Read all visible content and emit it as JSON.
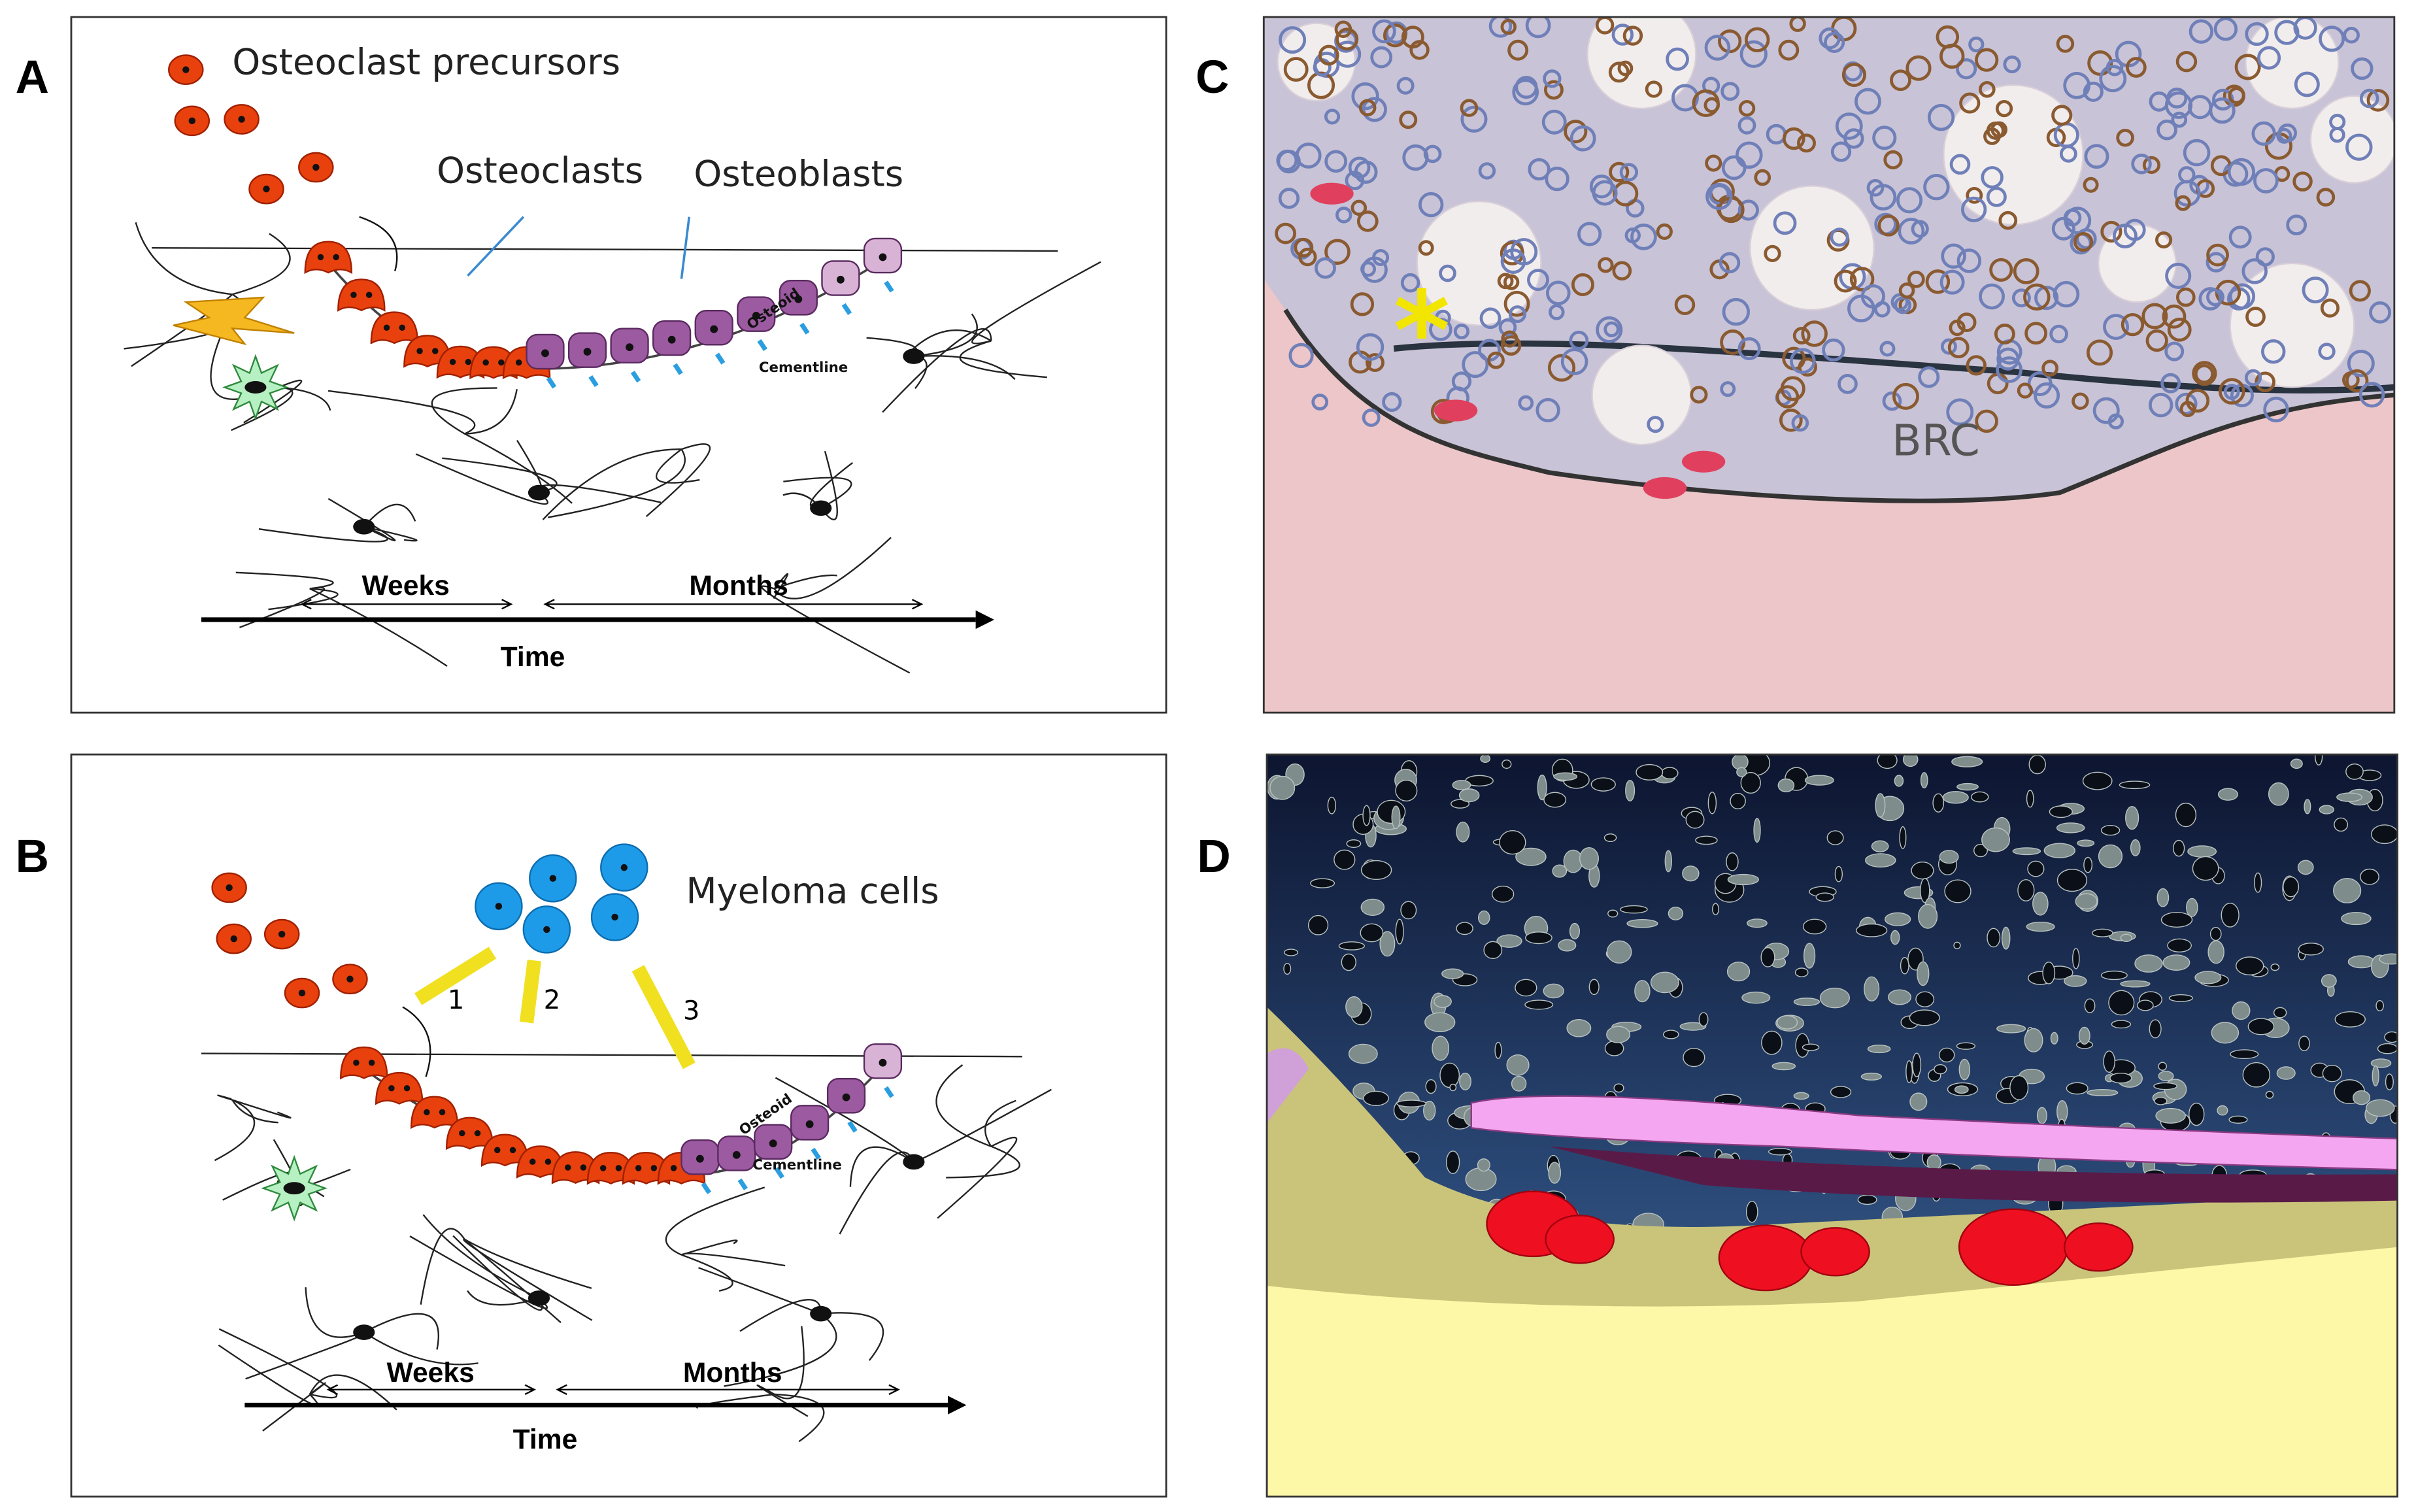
{
  "panel_a": {
    "label": "A",
    "precursors": "Osteoclast precursors",
    "osteoclasts": "Osteoclasts",
    "osteoblasts": "Osteoblasts",
    "osteoid": "Osteoid",
    "cementline": "Cementline",
    "weeks": "Weeks",
    "months": "Months",
    "time": "Time"
  },
  "panel_b": {
    "label": "B",
    "myeloma": "Myeloma cells",
    "arrows": [
      "1",
      "2",
      "3"
    ],
    "osteoid": "Osteoid",
    "cementline": "Cementline",
    "weeks": "Weeks",
    "months": "Months",
    "time": "Time"
  },
  "panel_c": {
    "label": "C",
    "marker": "*",
    "region": "BRC"
  },
  "panel_d": {
    "label": "D"
  }
}
